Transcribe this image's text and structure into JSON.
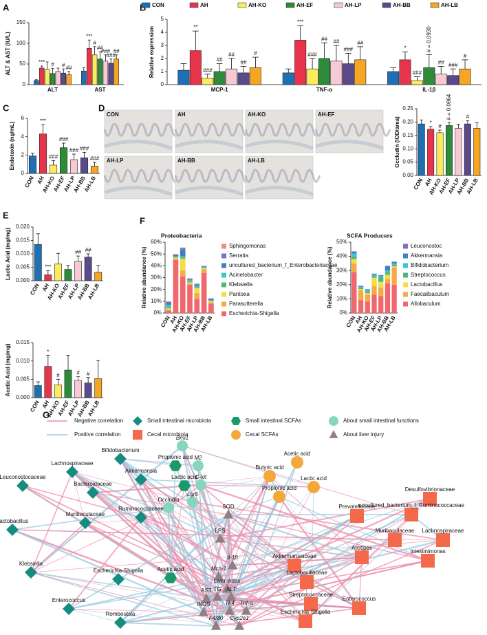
{
  "panels": [
    "A",
    "B",
    "C",
    "D",
    "E",
    "F",
    "G"
  ],
  "micrographs": [
    "CON",
    "AH",
    "AH-KO",
    "AH-EF",
    "AH-LP",
    "AH-BB",
    "AH-LB"
  ],
  "chart_data": [
    {
      "type": "grouped_bar",
      "y_label": "ALT & AST (IU/L)",
      "categories": [
        "ALT",
        "AST"
      ],
      "ylim": [
        0,
        150
      ],
      "yticks": [
        0,
        50,
        100,
        150
      ],
      "series": [
        {
          "color": "#1f6fb5",
          "values": [
            10,
            33
          ],
          "errors": [
            2,
            8
          ],
          "annotations": [
            null,
            null
          ]
        },
        {
          "color": "#e8344a",
          "values": [
            40,
            88
          ],
          "errors": [
            5,
            20
          ],
          "annotations": [
            "***",
            "***"
          ]
        },
        {
          "color": "#fbec5d",
          "values": [
            37,
            72
          ],
          "errors": [
            18,
            20
          ],
          "annotations": [
            null,
            "#"
          ]
        },
        {
          "color": "#2e8b3a",
          "values": [
            27,
            62
          ],
          "errors": [
            12,
            18
          ],
          "annotations": [
            "#",
            "##"
          ]
        },
        {
          "color": "#f7c9d4",
          "values": [
            32,
            57
          ],
          "errors": [
            8,
            15
          ],
          "annotations": [
            null,
            "###"
          ]
        },
        {
          "color": "#5b4a8b",
          "values": [
            28,
            52
          ],
          "errors": [
            10,
            10
          ],
          "annotations": [
            "#",
            "###"
          ]
        },
        {
          "color": "#f5a623",
          "values": [
            24,
            62
          ],
          "errors": [
            8,
            10
          ],
          "annotations": [
            "##",
            "##"
          ]
        }
      ]
    },
    {
      "type": "grouped_bar",
      "legend": true,
      "y_label": "Relative expression",
      "categories": [
        "MCP-1",
        "TNF-α",
        "IL-1β"
      ],
      "ylim": [
        0,
        5
      ],
      "yticks": [
        0,
        1,
        2,
        3,
        4,
        5
      ],
      "series": [
        {
          "name": "CON",
          "color": "#1f6fb5",
          "values": [
            1.1,
            0.9,
            1.0
          ],
          "errors": [
            0.5,
            0.3,
            0.3
          ],
          "annotations": [
            null,
            null,
            null
          ]
        },
        {
          "name": "AH",
          "color": "#e8344a",
          "values": [
            2.6,
            3.4,
            1.9
          ],
          "errors": [
            1.5,
            1.1,
            0.6
          ],
          "annotations": [
            "**",
            "***",
            "*"
          ]
        },
        {
          "name": "AH-KO",
          "color": "#fbec5d",
          "values": [
            0.5,
            1.2,
            0.3
          ],
          "errors": [
            0.3,
            0.8,
            0.3
          ],
          "annotations": [
            "###",
            "###",
            "###"
          ]
        },
        {
          "name": "AH-EF",
          "color": "#2e8b3a",
          "values": [
            1.0,
            2.0,
            1.3
          ],
          "errors": [
            0.6,
            1.2,
            1.0
          ],
          "annotations": [
            "##",
            "##",
            "# = 0.0930"
          ]
        },
        {
          "name": "AH-LP",
          "color": "#f7c9d4",
          "values": [
            1.2,
            1.8,
            0.8
          ],
          "errors": [
            0.8,
            1.2,
            0.6
          ],
          "annotations": [
            "##",
            "##",
            "##"
          ]
        },
        {
          "name": "AH-BB",
          "color": "#5b4a8b",
          "values": [
            0.9,
            1.6,
            0.7
          ],
          "errors": [
            0.5,
            0.8,
            0.5
          ],
          "annotations": [
            "##",
            "###",
            "###"
          ]
        },
        {
          "name": "AH-LB",
          "color": "#f5a623",
          "values": [
            1.3,
            1.9,
            1.2
          ],
          "errors": [
            0.8,
            1.0,
            0.7
          ],
          "annotations": [
            "#",
            "##",
            "#"
          ]
        }
      ]
    },
    {
      "type": "bar",
      "y_label": "Endotoxin (ng/mL)",
      "categories": [
        "CON",
        "AH",
        "AH-KO",
        "AH-EF",
        "AH-LP",
        "AH-BB",
        "AH-LB"
      ],
      "colors": [
        "#1f6fb5",
        "#e8344a",
        "#fbec5d",
        "#2e8b3a",
        "#f7c9d4",
        "#5b4a8b",
        "#f5a623"
      ],
      "values": [
        1.9,
        4.3,
        0.9,
        2.8,
        1.5,
        1.7,
        0.8
      ],
      "errors": [
        0.3,
        1.0,
        0.5,
        0.5,
        0.6,
        0.6,
        0.4
      ],
      "annotations": [
        null,
        "***",
        "###",
        "###",
        "###",
        "###",
        "###"
      ],
      "ylim": [
        0,
        6
      ],
      "yticks": [
        0,
        2,
        4,
        6
      ]
    },
    {
      "type": "bar",
      "y_label": "Occludin (IOD/area)",
      "categories": [
        "CON",
        "AH",
        "AH-KO",
        "AH-EF",
        "AH-LP",
        "AH-BB",
        "AH-LB"
      ],
      "colors": [
        "#1f6fb5",
        "#e8344a",
        "#fbec5d",
        "#2e8b3a",
        "#f7c9d4",
        "#5b4a8b",
        "#f5a623"
      ],
      "values": [
        0.193,
        0.173,
        0.16,
        0.187,
        0.177,
        0.193,
        0.177
      ],
      "errors": [
        0.015,
        0.01,
        0.01,
        0.012,
        0.015,
        0.012,
        0.02
      ],
      "annotations": [
        null,
        "*",
        "#",
        "# = 0.0864",
        null,
        "#",
        null
      ],
      "ylim": [
        0,
        0.25
      ],
      "yticks": [
        {
          "value": 0,
          "label": "0.00"
        },
        {
          "value": 0.05,
          "label": "0.05"
        },
        {
          "value": 0.1,
          "label": "0.10"
        },
        {
          "value": 0.15,
          "label": "0.15"
        },
        {
          "value": 0.2,
          "label": "0.20"
        },
        {
          "value": 0.25,
          "label": "0.25"
        }
      ]
    },
    {
      "type": "bar",
      "y_label": "Lactic Acid (mg/mg)",
      "categories": [
        "CON",
        "AH",
        "AH-KO",
        "AH-EF",
        "AH-LP",
        "AH-BB",
        "AH-LB"
      ],
      "colors": [
        "#1f6fb5",
        "#e8344a",
        "#fbec5d",
        "#2e8b3a",
        "#f7c9d4",
        "#5b4a8b",
        "#f5a623"
      ],
      "values": [
        0.0135,
        0.0022,
        0.0062,
        0.0042,
        0.0072,
        0.0088,
        0.0032
      ],
      "errors": [
        0.004,
        0.0015,
        0.004,
        0.0015,
        0.002,
        0.0012,
        0.0025
      ],
      "annotations": [
        null,
        "***",
        null,
        null,
        "##",
        "##",
        null
      ],
      "ylim": [
        0,
        0.02
      ],
      "yticks": [
        {
          "value": 0,
          "label": "0.000"
        },
        {
          "value": 0.005,
          "label": "0.005"
        },
        {
          "value": 0.01,
          "label": "0.010"
        },
        {
          "value": 0.015,
          "label": "0.015"
        },
        {
          "value": 0.02,
          "label": "0.020"
        }
      ]
    },
    {
      "type": "bar",
      "y_label": "Acetic Acid (mg/mg)",
      "categories": [
        "CON",
        "AH",
        "AH-KO",
        "AH-EF",
        "AH-LP",
        "AH-BB",
        "AH-LB"
      ],
      "colors": [
        "#1f6fb5",
        "#e8344a",
        "#fbec5d",
        "#2e8b3a",
        "#f7c9d4",
        "#5b4a8b",
        "#f5a623"
      ],
      "values": [
        0.0033,
        0.0085,
        0.0035,
        0.0075,
        0.0047,
        0.004,
        0.0052
      ],
      "errors": [
        0.001,
        0.003,
        0.0015,
        0.004,
        0.001,
        0.0015,
        0.005
      ],
      "annotations": [
        null,
        "*",
        "#",
        null,
        "#",
        "#",
        null
      ],
      "ylim": [
        0,
        0.015
      ],
      "yticks": [
        {
          "value": 0,
          "label": "0.000"
        },
        {
          "value": 0.005,
          "label": "0.005"
        },
        {
          "value": 0.01,
          "label": "0.010"
        },
        {
          "value": 0.015,
          "label": "0.015"
        }
      ]
    },
    {
      "type": "stacked_bar",
      "title": "Proteobacteria",
      "y_label": "Relative abundance (%)",
      "categories": [
        "CON",
        "AH",
        "AH-KO",
        "AH-EF",
        "AH-LP",
        "AH-BB",
        "AH-LB"
      ],
      "ylim": [
        0,
        60
      ],
      "yticks": [
        {
          "value": 0,
          "label": "0%"
        },
        {
          "value": 10,
          "label": "10%"
        },
        {
          "value": 20,
          "label": "20%"
        },
        {
          "value": 30,
          "label": "30%"
        },
        {
          "value": 40,
          "label": "40%"
        },
        {
          "value": 50,
          "label": "50%"
        },
        {
          "value": 60,
          "label": "60%"
        }
      ],
      "series": [
        {
          "name": "Sphingomonas",
          "color": "#f28b82",
          "values": [
            0.5,
            0.5,
            0.5,
            0.5,
            0.5,
            0.2,
            0.2
          ]
        },
        {
          "name": "Serratia",
          "color": "#7b6fc4",
          "values": [
            0.5,
            0.5,
            1,
            0.5,
            0.5,
            0.3,
            0.3
          ]
        },
        {
          "name": "uncultured_bacterium_f_Enterobacteriaceae",
          "color": "#3f7fc4",
          "values": [
            2,
            1,
            6,
            0.5,
            1,
            0.5,
            1
          ]
        },
        {
          "name": "Acinetobacter",
          "color": "#3cc6c9",
          "values": [
            2,
            0.5,
            1,
            1,
            1,
            0.5,
            0.5
          ]
        },
        {
          "name": "Klebsiella",
          "color": "#4cb87a",
          "values": [
            1,
            0.5,
            1,
            1,
            1,
            0.5,
            0.5
          ]
        },
        {
          "name": "Pantoea",
          "color": "#f3dc4b",
          "values": [
            1,
            1,
            10,
            1,
            4,
            1,
            1
          ]
        },
        {
          "name": "Parasutterella",
          "color": "#f5a947",
          "values": [
            1,
            1,
            5,
            1,
            5,
            3,
            1
          ]
        },
        {
          "name": "Escherichia-Shigella",
          "color": "#f0676e",
          "values": [
            2,
            45,
            31,
            24,
            12,
            34,
            8
          ]
        }
      ]
    },
    {
      "type": "stacked_bar",
      "title": "SCFA Producers",
      "y_label": "Relative abundance (%)",
      "categories": [
        "CON",
        "AH",
        "AH-KO",
        "AH-EF",
        "AH-LP",
        "AH-BB",
        "AH-LB"
      ],
      "ylim": [
        0,
        50
      ],
      "yticks": [
        {
          "value": 0,
          "label": "0%"
        },
        {
          "value": 10,
          "label": "10%"
        },
        {
          "value": 20,
          "label": "20%"
        },
        {
          "value": 30,
          "label": "30%"
        },
        {
          "value": 40,
          "label": "40%"
        },
        {
          "value": 50,
          "label": "50%"
        }
      ],
      "series": [
        {
          "name": "Leuconostoc",
          "color": "#7b6fc4",
          "values": [
            0.5,
            0.3,
            0.3,
            0.3,
            0.3,
            0.3,
            0.3
          ]
        },
        {
          "name": "Akkermansia",
          "color": "#3f7fc4",
          "values": [
            1,
            0.5,
            0.5,
            0.5,
            0.5,
            3,
            1
          ]
        },
        {
          "name": "Bifidobacterium",
          "color": "#3cc6c9",
          "values": [
            2,
            1,
            1,
            1,
            1,
            1,
            1
          ]
        },
        {
          "name": "Streptococcus",
          "color": "#4cb87a",
          "values": [
            2,
            0.5,
            1,
            1,
            3,
            2,
            1
          ]
        },
        {
          "name": "Lactobacillus",
          "color": "#f3dc4b",
          "values": [
            3,
            1,
            1,
            6,
            4,
            3,
            1
          ]
        },
        {
          "name": "Faecalibaculum",
          "color": "#f5a947",
          "values": [
            6,
            7,
            5,
            6,
            6,
            3,
            12
          ]
        },
        {
          "name": "Allobaculum",
          "color": "#f0676e",
          "values": [
            29,
            9,
            8,
            13,
            12,
            21,
            20
          ]
        }
      ]
    }
  ],
  "network": {
    "edge_legend": [
      "Negative correlation",
      "Positive correlation"
    ],
    "edge_colors": [
      "#f08aa8",
      "#9ccbe0"
    ],
    "groups": [
      {
        "name": "Small intestinal microbiota",
        "color": "#168b7f",
        "nodes": [
          "Bifidobacterium",
          "Lachnospiraceae",
          "Akkermansia",
          "Bacteroidaceae",
          "Leuconostocaceae",
          "Ruminococcaceae",
          "Muribaculaceae",
          "Lactobacillus",
          "Escherichia-Shigella",
          "Klebsiella",
          "Enterococcus",
          "Romboutsia"
        ]
      },
      {
        "name": "Small intestinal SCFAs",
        "color": "#1a9a6a",
        "nodes": [
          "Propionic acid",
          "Lactic acid",
          "Acetic acid"
        ]
      },
      {
        "name": "About small intestinal functions",
        "color": "#86d6be",
        "nodes": [
          "Bmi1",
          "M2",
          "C-kit",
          "Lgr5",
          "Occludin"
        ]
      },
      {
        "name": "Cecal microbiota",
        "color": "#f4694a",
        "nodes": [
          "Desulfovibrionaceae",
          "uncultured_bacterium_f_Ruminococcaceae",
          "Prevotellaceae",
          "Lachnospiraceae",
          "Muribaculaceae",
          "Intestinimonas",
          "Akkermansiaceae",
          "Alistipes",
          "Lactobacillaceae",
          "Streptococcaceae",
          "Enterococcus",
          "Escherichia-Shigella"
        ]
      },
      {
        "name": "Cecal SCFAs",
        "color": "#f5a83a",
        "nodes": [
          "Acetic acid",
          "Butyric acid",
          "Lactic acid",
          "Propionic acid"
        ]
      },
      {
        "name": "About liver injury",
        "color": "#8f7f82",
        "nodes": [
          "SOD",
          "LPS",
          "Il-1β",
          "Mcp-1",
          "Liver index",
          "AST",
          "TG",
          "ALT",
          "iNOS",
          "Tlr4",
          "Tnf-α",
          "F4/80",
          "Cyp2e1"
        ]
      }
    ]
  }
}
